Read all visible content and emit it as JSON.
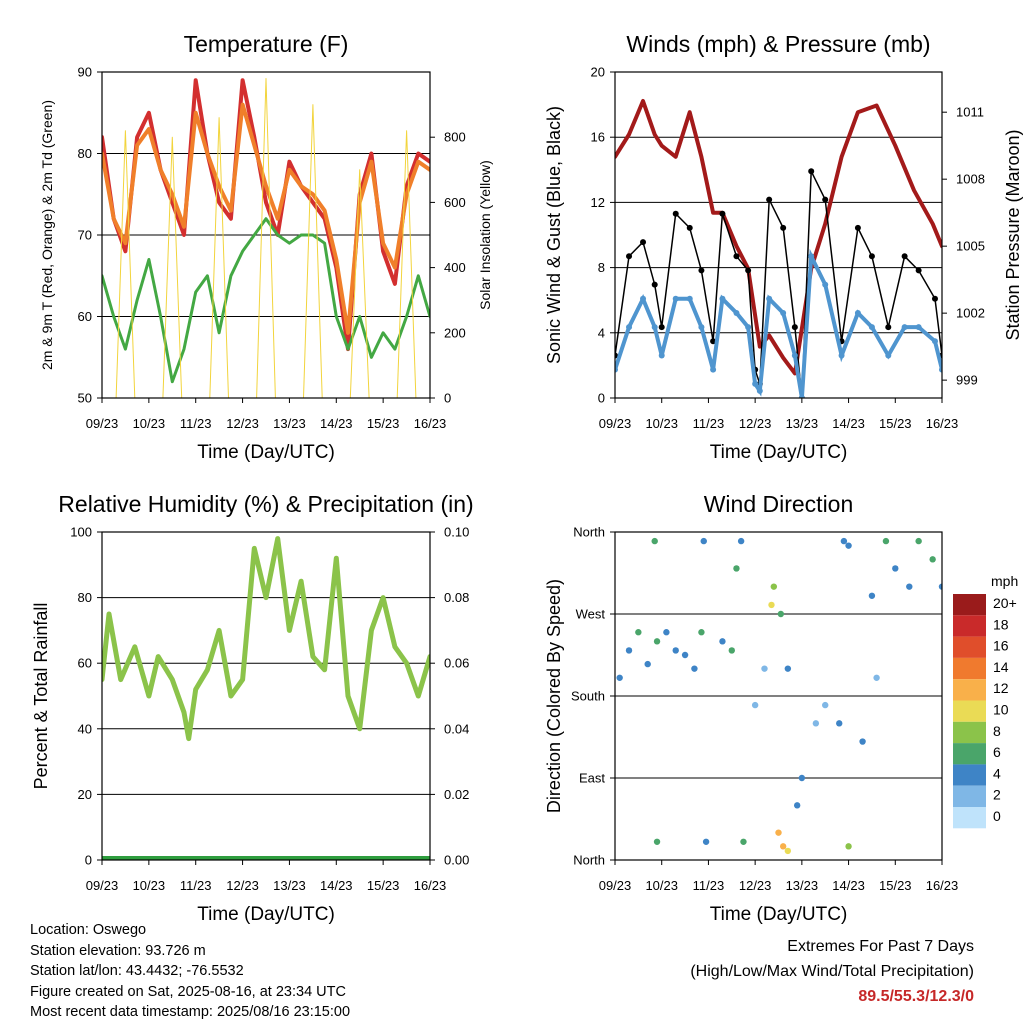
{
  "time_ticks": [
    "09/23",
    "10/23",
    "11/23",
    "12/23",
    "13/23",
    "14/23",
    "15/23",
    "16/23"
  ],
  "xlabel": "Time (Day/UTC)",
  "charts": [
    {
      "type": "line",
      "title": "Temperature (F)",
      "ylabel_left": "2m & 9m T (Red, Orange) & 2m Td (Green)",
      "ylabel_right": "Solar Insolation (Yellow)",
      "ylim": [
        50,
        90
      ],
      "yticks": [
        "50",
        "60",
        "70",
        "80",
        "90"
      ],
      "y2lim": [
        0,
        1000
      ],
      "y2ticks": [
        "0",
        "200",
        "400",
        "600",
        "800"
      ],
      "grid": true,
      "series": [
        {
          "role": "2m T",
          "color": "#d32f2f",
          "x": [
            0,
            0.25,
            0.5,
            0.75,
            1.0,
            1.25,
            1.5,
            1.75,
            2.0,
            2.25,
            2.5,
            2.75,
            3.0,
            3.25,
            3.5,
            3.75,
            4.0,
            4.25,
            4.5,
            4.75,
            5.0,
            5.25,
            5.5,
            5.75,
            6.0,
            6.25,
            6.5,
            6.75,
            7.0
          ],
          "y": [
            82,
            72,
            68,
            82,
            85,
            78,
            74,
            70,
            89,
            80,
            74,
            72,
            89,
            82,
            74,
            70,
            79,
            76,
            74,
            72,
            66,
            56,
            75,
            80,
            68,
            64,
            76,
            80,
            79
          ]
        },
        {
          "role": "9m T",
          "color": "#f07f2a",
          "x": [
            0,
            0.25,
            0.5,
            0.75,
            1.0,
            1.25,
            1.5,
            1.75,
            2.0,
            2.25,
            2.5,
            2.75,
            3.0,
            3.25,
            3.5,
            3.75,
            4.0,
            4.25,
            4.5,
            4.75,
            5.0,
            5.25,
            5.5,
            5.75,
            6.0,
            6.25,
            6.5,
            6.75,
            7.0
          ],
          "y": [
            80,
            72,
            69,
            81,
            83,
            78,
            75,
            71,
            85,
            80,
            76,
            73,
            86,
            81,
            76,
            72,
            78,
            76,
            75,
            73,
            67,
            58,
            74,
            79,
            69,
            66,
            75,
            79,
            78
          ]
        },
        {
          "role": "2m Td",
          "color": "#43a843",
          "x": [
            0,
            0.25,
            0.5,
            0.75,
            1.0,
            1.25,
            1.5,
            1.75,
            2.0,
            2.25,
            2.5,
            2.75,
            3.0,
            3.25,
            3.5,
            3.75,
            4.0,
            4.25,
            4.5,
            4.75,
            5.0,
            5.25,
            5.5,
            5.75,
            6.0,
            6.25,
            6.5,
            6.75,
            7.0
          ],
          "y": [
            65,
            60,
            56,
            62,
            67,
            60,
            52,
            56,
            63,
            65,
            58,
            65,
            68,
            70,
            72,
            70,
            69,
            70,
            70,
            69,
            60,
            56,
            60,
            55,
            58,
            56,
            60,
            65,
            60
          ]
        },
        {
          "role": "Solar",
          "color": "#f2d43c",
          "axis": "right",
          "x": [
            0,
            0.3,
            0.5,
            0.7,
            1.0,
            1.3,
            1.5,
            1.7,
            2.0,
            2.3,
            2.5,
            2.7,
            3.0,
            3.3,
            3.5,
            3.7,
            4.0,
            4.3,
            4.5,
            4.7,
            5.0,
            5.3,
            5.5,
            5.7,
            6.0,
            6.3,
            6.5,
            6.7,
            7.0
          ],
          "y": [
            0,
            0,
            820,
            0,
            0,
            0,
            800,
            0,
            0,
            0,
            860,
            0,
            0,
            0,
            980,
            0,
            0,
            0,
            900,
            0,
            0,
            0,
            700,
            0,
            0,
            0,
            820,
            0,
            0
          ]
        }
      ]
    },
    {
      "type": "scatter+line",
      "title": "Winds (mph) & Pressure (mb)",
      "ylabel_left": "Sonic Wind & Gust (Blue, Black)",
      "ylabel_right": "Station Pressure (Maroon)",
      "ylim": [
        0,
        23
      ],
      "yticks": [
        "0",
        "4",
        "8",
        "12",
        "16",
        "20"
      ],
      "y2lim": [
        998.2,
        1012.8
      ],
      "y2ticks": [
        "999",
        "1002",
        "1005",
        "1008",
        "1011"
      ],
      "grid": true,
      "series": [
        {
          "role": "Pressure",
          "color": "#a31a1a",
          "axis": "right",
          "x": [
            0,
            0.3,
            0.6,
            0.85,
            1.0,
            1.3,
            1.6,
            1.85,
            2.1,
            2.3,
            2.6,
            2.85,
            3.1,
            3.3,
            3.6,
            3.85,
            4.2,
            4.5,
            4.85,
            5.2,
            5.6,
            6.0,
            6.4,
            6.8,
            7.0
          ],
          "y": [
            1009,
            1010,
            1011.5,
            1010,
            1009.5,
            1009,
            1011,
            1009,
            1006.5,
            1006.5,
            1005,
            1004,
            1000.5,
            1001,
            1000,
            999.3,
            1004,
            1006,
            1009,
            1011,
            1011.3,
            1009.5,
            1007.5,
            1006,
            1005
          ]
        },
        {
          "role": "Gust",
          "color": "#000000",
          "x": [
            0,
            0.3,
            0.6,
            0.85,
            1.0,
            1.3,
            1.6,
            1.85,
            2.1,
            2.3,
            2.6,
            2.85,
            3.0,
            3.1,
            3.3,
            3.6,
            3.85,
            4.0,
            4.2,
            4.5,
            4.85,
            5.2,
            5.5,
            5.85,
            6.2,
            6.5,
            6.85,
            7.0
          ],
          "y": [
            3,
            10,
            11,
            8,
            5,
            13,
            12,
            9,
            4,
            13,
            10,
            9,
            2,
            1,
            14,
            12,
            5,
            0,
            16,
            14,
            4,
            12,
            10,
            5,
            10,
            9,
            7,
            3
          ]
        },
        {
          "role": "Wind",
          "color": "#4f95cf",
          "x": [
            0,
            0.3,
            0.6,
            0.85,
            1.0,
            1.3,
            1.6,
            1.85,
            2.1,
            2.3,
            2.6,
            2.85,
            3.0,
            3.1,
            3.3,
            3.6,
            3.85,
            4.0,
            4.2,
            4.5,
            4.85,
            5.2,
            5.5,
            5.85,
            6.2,
            6.5,
            6.85,
            7.0
          ],
          "y": [
            2,
            5,
            7,
            5,
            3,
            7,
            7,
            5,
            2,
            7,
            6,
            5,
            1,
            0.5,
            7,
            6,
            3,
            0,
            10,
            8,
            3,
            6,
            5,
            3,
            5,
            5,
            4,
            2
          ]
        }
      ]
    },
    {
      "type": "line",
      "title": "Relative Humidity (%) & Precipitation (in)",
      "ylabel_left": "Percent & Total Rainfall",
      "ylim": [
        0,
        100
      ],
      "yticks": [
        "0",
        "20",
        "40",
        "60",
        "80",
        "100"
      ],
      "y2lim": [
        0,
        0.1
      ],
      "y2ticks": [
        "0.00",
        "0.02",
        "0.04",
        "0.06",
        "0.08",
        "0.10"
      ],
      "grid": true,
      "series": [
        {
          "role": "RH",
          "color": "#8bc34a",
          "x": [
            0,
            0.15,
            0.4,
            0.7,
            1.0,
            1.2,
            1.5,
            1.75,
            1.85,
            2.0,
            2.25,
            2.5,
            2.75,
            3.0,
            3.25,
            3.5,
            3.75,
            4.0,
            4.25,
            4.5,
            4.75,
            5.0,
            5.25,
            5.5,
            5.75,
            6.0,
            6.25,
            6.5,
            6.75,
            7.0
          ],
          "y": [
            55,
            75,
            55,
            65,
            50,
            62,
            55,
            45,
            37,
            52,
            58,
            70,
            50,
            55,
            95,
            80,
            98,
            70,
            85,
            62,
            58,
            92,
            50,
            40,
            70,
            80,
            65,
            60,
            50,
            62
          ]
        },
        {
          "role": "Precipitation",
          "color": "#2e9e3e",
          "axis": "right",
          "x": [
            0,
            7
          ],
          "y": [
            0,
            0
          ]
        }
      ]
    },
    {
      "type": "scatter",
      "title": "Wind Direction",
      "ylabel_left": "Direction (Colored By Speed)",
      "ylim": [
        0,
        360
      ],
      "yticks": [
        "North",
        "East",
        "South",
        "West",
        "North"
      ],
      "grid": true,
      "colorbar": {
        "title": "mph",
        "labels": [
          "20+",
          "18",
          "16",
          "14",
          "12",
          "10",
          "8",
          "6",
          "4",
          "2",
          "0"
        ],
        "colors": [
          "#9a1b1b",
          "#c92a2a",
          "#e04e2b",
          "#f07a2e",
          "#f9b04a",
          "#eadb55",
          "#8bc34a",
          "#4aa56a",
          "#3e84c6",
          "#7fb7e6",
          "#bfe3fb"
        ]
      },
      "points": [
        [
          0.1,
          200,
          4
        ],
        [
          0.3,
          230,
          4
        ],
        [
          0.5,
          250,
          6
        ],
        [
          0.7,
          215,
          4
        ],
        [
          0.9,
          240,
          6
        ],
        [
          1.1,
          250,
          4
        ],
        [
          0.85,
          350,
          6
        ],
        [
          0.9,
          20,
          6
        ],
        [
          1.3,
          230,
          4
        ],
        [
          1.5,
          225,
          4
        ],
        [
          1.7,
          210,
          4
        ],
        [
          1.85,
          250,
          6
        ],
        [
          1.9,
          350,
          4
        ],
        [
          1.95,
          20,
          4
        ],
        [
          2.3,
          240,
          4
        ],
        [
          2.5,
          230,
          6
        ],
        [
          2.6,
          320,
          6
        ],
        [
          2.7,
          350,
          4
        ],
        [
          2.75,
          20,
          6
        ],
        [
          3.0,
          170,
          2
        ],
        [
          3.2,
          210,
          2
        ],
        [
          3.35,
          280,
          10
        ],
        [
          3.4,
          300,
          8
        ],
        [
          3.55,
          270,
          6
        ],
        [
          3.7,
          210,
          4
        ],
        [
          3.5,
          30,
          12
        ],
        [
          3.6,
          15,
          12
        ],
        [
          3.7,
          10,
          10
        ],
        [
          3.9,
          60,
          4
        ],
        [
          4.0,
          90,
          4
        ],
        [
          4.3,
          150,
          2
        ],
        [
          4.5,
          170,
          2
        ],
        [
          4.8,
          150,
          4
        ],
        [
          4.9,
          350,
          4
        ],
        [
          5.0,
          15,
          8
        ],
        [
          5.0,
          345,
          4
        ],
        [
          5.3,
          130,
          4
        ],
        [
          5.5,
          290,
          4
        ],
        [
          5.6,
          200,
          2
        ],
        [
          5.8,
          350,
          6
        ],
        [
          6.0,
          320,
          4
        ],
        [
          6.3,
          300,
          4
        ],
        [
          6.5,
          350,
          6
        ],
        [
          6.8,
          330,
          6
        ],
        [
          7.0,
          300,
          4
        ]
      ]
    }
  ],
  "info": {
    "location": "Location: Oswego",
    "elevation": "Station elevation: 93.726 m",
    "latlon": "Station lat/lon: 43.4432; -76.5532",
    "created": "Figure created on Sat, 2025-08-16, at 23:34 UTC",
    "recent": "Most recent data timestamp: 2025/08/16 23:15:00"
  },
  "extremes": {
    "title": "Extremes For Past 7 Days",
    "subtitle": "(High/Low/Max Wind/Total Precipitation)",
    "values": "89.5/55.3/12.3/0"
  }
}
